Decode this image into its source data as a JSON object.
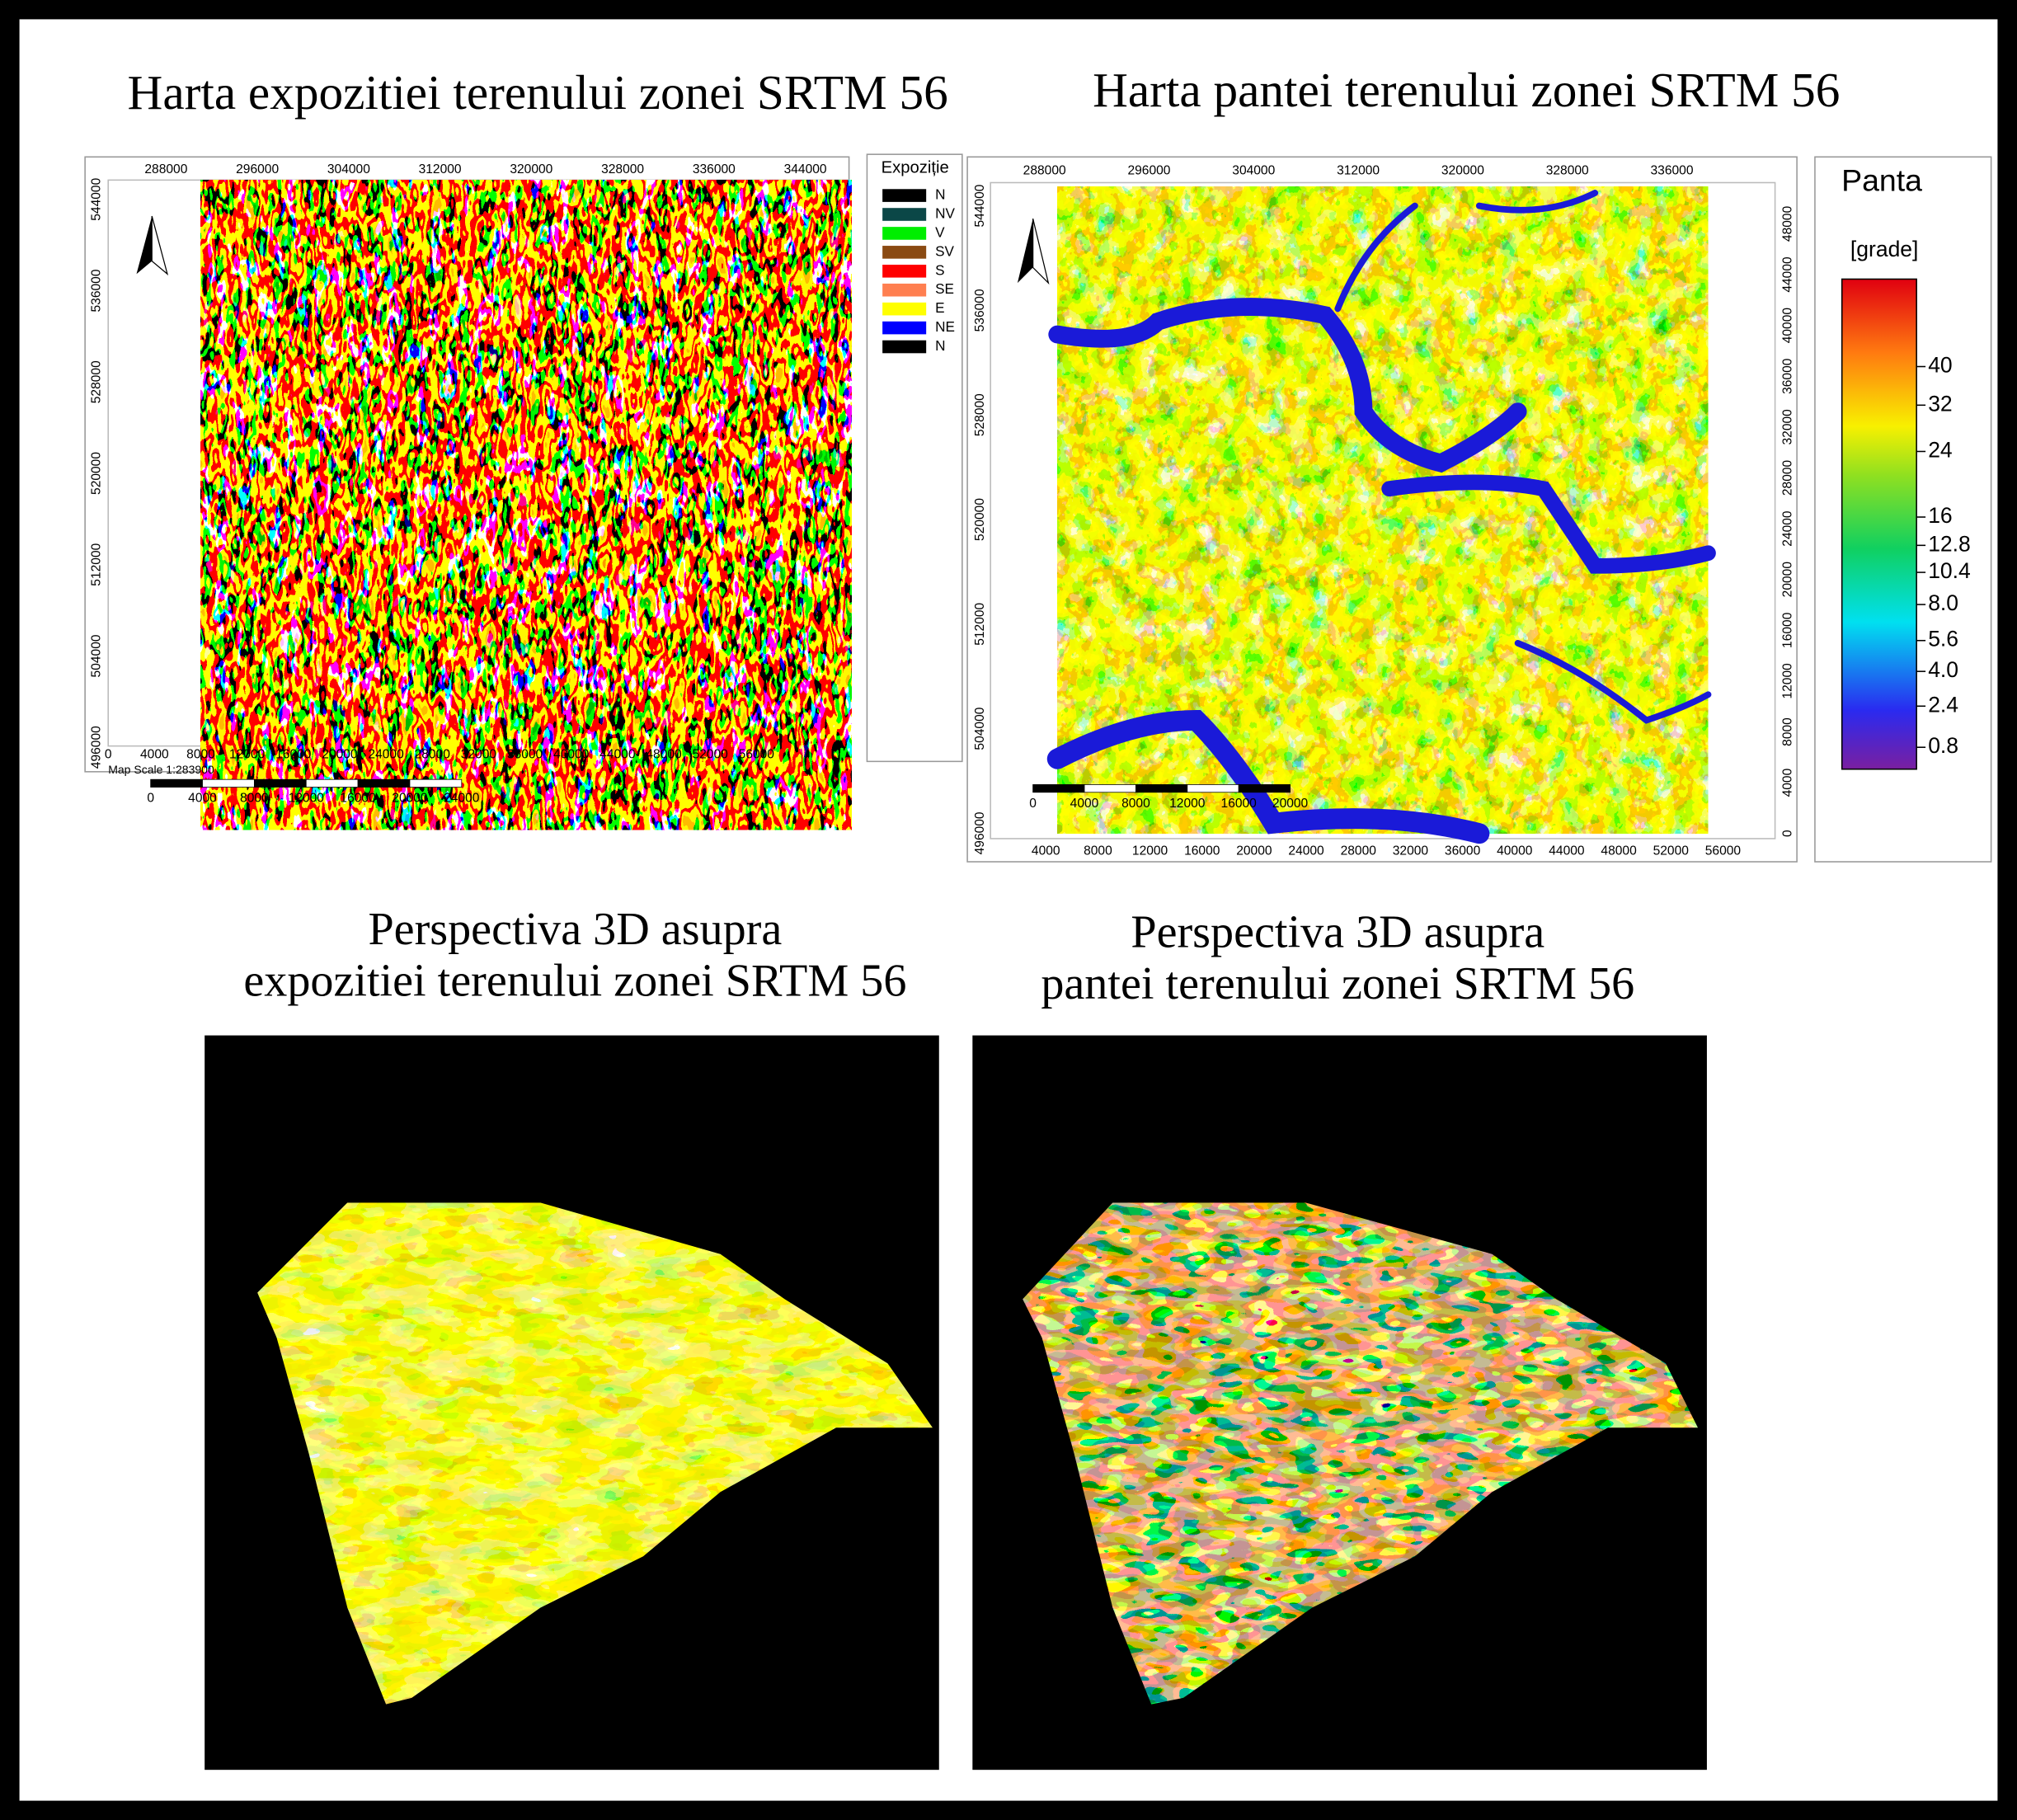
{
  "maps": [
    {
      "title": "Harta expozitiei terenului zonei SRTM 56",
      "top_ticks": [
        "288000",
        "296000",
        "304000",
        "312000",
        "320000",
        "328000",
        "336000",
        "344000"
      ],
      "left_ticks": [
        "544000",
        "536000",
        "528000",
        "520000",
        "512000",
        "504000",
        "496000"
      ],
      "bottom_ticks": [
        "0",
        "4000",
        "8000",
        "12000",
        "16000",
        "20000",
        "24000",
        "28000",
        "32000",
        "36000",
        "40000",
        "44000",
        "48000",
        "52000",
        "56000"
      ],
      "scale_text": "Map Scale 1:283900",
      "scalebar_ticks": [
        "0",
        "4000",
        "8000",
        "12000",
        "16000",
        "20000",
        "24000"
      ]
    },
    {
      "title": "Harta pantei terenului zonei SRTM 56",
      "top_ticks": [
        "288000",
        "296000",
        "304000",
        "312000",
        "320000",
        "328000",
        "336000"
      ],
      "left_ticks": [
        "544000",
        "536000",
        "528000",
        "520000",
        "512000",
        "504000",
        "496000"
      ],
      "right_ticks": [
        "48000",
        "44000",
        "40000",
        "36000",
        "32000",
        "28000",
        "24000",
        "20000",
        "16000",
        "12000",
        "8000",
        "4000",
        "0"
      ],
      "bottom_ticks": [
        "4000",
        "8000",
        "12000",
        "16000",
        "20000",
        "24000",
        "28000",
        "32000",
        "36000",
        "40000",
        "44000",
        "48000",
        "52000",
        "56000"
      ],
      "scalebar_ticks": [
        "0",
        "4000",
        "8000",
        "12000",
        "16000",
        "20000"
      ]
    }
  ],
  "aspect_legend": {
    "title": "Expoziție",
    "items": [
      {
        "label": "N",
        "color": "#000000"
      },
      {
        "label": "NV",
        "color": "#0b4747"
      },
      {
        "label": "V",
        "color": "#00ee00"
      },
      {
        "label": "SV",
        "color": "#8a4a12"
      },
      {
        "label": "S",
        "color": "#ff0000"
      },
      {
        "label": "SE",
        "color": "#ff7f50"
      },
      {
        "label": "E",
        "color": "#ffff00"
      },
      {
        "label": "NE",
        "color": "#0000ff"
      },
      {
        "label": "N",
        "color": "#000000"
      }
    ]
  },
  "slope_legend": {
    "title": "Panta",
    "unit": "[grade]",
    "ticks": [
      "40",
      "32",
      "24",
      "16",
      "12.8",
      "10.4",
      "8.0",
      "5.6",
      "4.0",
      "2.4",
      "0.8"
    ]
  },
  "views": [
    {
      "title_lines": [
        "Perspectiva 3D asupra",
        "expozitiei terenului zonei SRTM 56"
      ]
    },
    {
      "title_lines": [
        "Perspectiva 3D asupra",
        "pantei terenului zonei SRTM 56"
      ]
    }
  ]
}
